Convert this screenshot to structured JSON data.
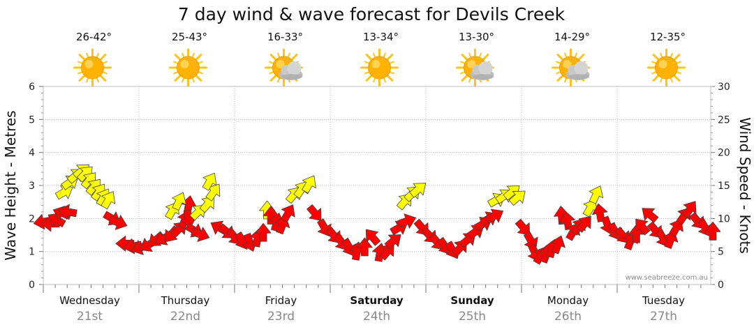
{
  "title": "7 day wind & wave forecast for Devils Creek",
  "watermark": "www.seabreeze.com.au",
  "chart_data": {
    "type": "scatter",
    "y_left": {
      "label": "Wave Height - Metres",
      "range": [
        0,
        6
      ],
      "ticks": [
        0,
        1,
        2,
        3,
        4,
        5,
        6
      ]
    },
    "y_right": {
      "label": "Wind Speed - Knots",
      "range": [
        0,
        30
      ],
      "ticks": [
        0,
        5,
        10,
        15,
        20,
        25,
        30
      ]
    },
    "grid": true,
    "days": [
      {
        "name": "Wednesday",
        "date": "21st",
        "temp": "26-42°",
        "weather": "sunny",
        "bold": false
      },
      {
        "name": "Thursday",
        "date": "22nd",
        "temp": "25-43°",
        "weather": "sunny",
        "bold": false
      },
      {
        "name": "Friday",
        "date": "23rd",
        "temp": "16-33°",
        "weather": "partly-cloudy",
        "bold": false
      },
      {
        "name": "Saturday",
        "date": "24th",
        "temp": "13-34°",
        "weather": "sunny",
        "bold": true
      },
      {
        "name": "Sunday",
        "date": "25th",
        "temp": "13-30°",
        "weather": "partly-cloudy",
        "bold": true
      },
      {
        "name": "Monday",
        "date": "26th",
        "temp": "14-29°",
        "weather": "partly-cloudy",
        "bold": false
      },
      {
        "name": "Tuesday",
        "date": "27th",
        "temp": "12-35°",
        "weather": "sunny",
        "bold": false
      }
    ],
    "colors": {
      "arrow_strong": "#ff0000",
      "arrow_light": "#ffff00",
      "arrow_stroke": "#444444",
      "sun": "#ffb300",
      "cloud": "#bdbdbd"
    },
    "series": [
      {
        "name": "wind",
        "unit": "knots",
        "note": "Arrows: position = wind speed at time (day index + fraction), rotation = direction in degrees (0 = pointing up/north), colour = strength class",
        "points": [
          {
            "t": 0.0,
            "v": 9.5,
            "dir": 260,
            "c": "strong"
          },
          {
            "t": 0.08,
            "v": 9.2,
            "dir": 270,
            "c": "strong"
          },
          {
            "t": 0.14,
            "v": 9.8,
            "dir": 300,
            "c": "strong"
          },
          {
            "t": 0.2,
            "v": 10.8,
            "dir": 290,
            "c": "strong"
          },
          {
            "t": 0.26,
            "v": 11.0,
            "dir": 280,
            "c": "strong"
          },
          {
            "t": 0.22,
            "v": 14.0,
            "dir": 60,
            "c": "light"
          },
          {
            "t": 0.28,
            "v": 15.5,
            "dir": 55,
            "c": "light"
          },
          {
            "t": 0.34,
            "v": 16.5,
            "dir": 50,
            "c": "light"
          },
          {
            "t": 0.4,
            "v": 17.2,
            "dir": 50,
            "c": "light"
          },
          {
            "t": 0.44,
            "v": 16.8,
            "dir": 45,
            "c": "light"
          },
          {
            "t": 0.48,
            "v": 15.8,
            "dir": 40,
            "c": "light"
          },
          {
            "t": 0.53,
            "v": 14.8,
            "dir": 40,
            "c": "light"
          },
          {
            "t": 0.58,
            "v": 14.0,
            "dir": 35,
            "c": "light"
          },
          {
            "t": 0.63,
            "v": 13.2,
            "dir": 30,
            "c": "light"
          },
          {
            "t": 0.68,
            "v": 12.8,
            "dir": 30,
            "c": "light"
          },
          {
            "t": 0.72,
            "v": 10.0,
            "dir": 120,
            "c": "strong"
          },
          {
            "t": 0.78,
            "v": 9.4,
            "dir": 110,
            "c": "strong"
          },
          {
            "t": 0.86,
            "v": 6.2,
            "dir": 270,
            "c": "strong"
          },
          {
            "t": 0.94,
            "v": 5.8,
            "dir": 260,
            "c": "strong"
          },
          {
            "t": 1.02,
            "v": 5.6,
            "dir": 250,
            "c": "strong"
          },
          {
            "t": 1.1,
            "v": 6.0,
            "dir": 240,
            "c": "strong"
          },
          {
            "t": 1.18,
            "v": 6.8,
            "dir": 230,
            "c": "strong"
          },
          {
            "t": 1.26,
            "v": 7.0,
            "dir": 240,
            "c": "strong"
          },
          {
            "t": 1.34,
            "v": 7.6,
            "dir": 220,
            "c": "strong"
          },
          {
            "t": 1.42,
            "v": 8.4,
            "dir": 45,
            "c": "strong"
          },
          {
            "t": 1.48,
            "v": 9.8,
            "dir": 20,
            "c": "strong"
          },
          {
            "t": 1.52,
            "v": 12.0,
            "dir": 10,
            "c": "strong"
          },
          {
            "t": 1.35,
            "v": 11.2,
            "dir": 30,
            "c": "light"
          },
          {
            "t": 1.42,
            "v": 12.6,
            "dir": 25,
            "c": "light"
          },
          {
            "t": 1.52,
            "v": 10.0,
            "dir": 170,
            "c": "strong"
          },
          {
            "t": 1.58,
            "v": 8.2,
            "dir": 120,
            "c": "strong"
          },
          {
            "t": 1.64,
            "v": 7.6,
            "dir": 110,
            "c": "strong"
          },
          {
            "t": 1.62,
            "v": 11.0,
            "dir": 45,
            "c": "light"
          },
          {
            "t": 1.72,
            "v": 12.2,
            "dir": 40,
            "c": "light"
          },
          {
            "t": 1.78,
            "v": 14.0,
            "dir": 35,
            "c": "light"
          },
          {
            "t": 1.74,
            "v": 15.6,
            "dir": 30,
            "c": "light"
          },
          {
            "t": 1.84,
            "v": 8.6,
            "dir": 300,
            "c": "strong"
          },
          {
            "t": 1.92,
            "v": 8.0,
            "dir": 130,
            "c": "strong"
          },
          {
            "t": 2.0,
            "v": 7.2,
            "dir": 140,
            "c": "strong"
          },
          {
            "t": 2.08,
            "v": 6.6,
            "dir": 150,
            "c": "strong"
          },
          {
            "t": 2.16,
            "v": 6.4,
            "dir": 160,
            "c": "strong"
          },
          {
            "t": 2.24,
            "v": 7.0,
            "dir": 10,
            "c": "strong"
          },
          {
            "t": 2.3,
            "v": 7.8,
            "dir": 0,
            "c": "strong"
          },
          {
            "t": 2.34,
            "v": 11.2,
            "dir": 0,
            "c": "light"
          },
          {
            "t": 2.38,
            "v": 10.4,
            "dir": 0,
            "c": "strong"
          },
          {
            "t": 2.44,
            "v": 9.4,
            "dir": 15,
            "c": "strong"
          },
          {
            "t": 2.5,
            "v": 9.0,
            "dir": 20,
            "c": "strong"
          },
          {
            "t": 2.56,
            "v": 10.8,
            "dir": 30,
            "c": "strong"
          },
          {
            "t": 2.62,
            "v": 13.6,
            "dir": 40,
            "c": "light"
          },
          {
            "t": 2.7,
            "v": 14.4,
            "dir": 35,
            "c": "light"
          },
          {
            "t": 2.78,
            "v": 15.2,
            "dir": 30,
            "c": "light"
          },
          {
            "t": 2.84,
            "v": 10.8,
            "dir": 140,
            "c": "strong"
          },
          {
            "t": 2.94,
            "v": 8.6,
            "dir": 150,
            "c": "strong"
          },
          {
            "t": 3.04,
            "v": 7.4,
            "dir": 140,
            "c": "strong"
          },
          {
            "t": 3.12,
            "v": 6.4,
            "dir": 145,
            "c": "strong"
          },
          {
            "t": 3.2,
            "v": 5.6,
            "dir": 150,
            "c": "strong"
          },
          {
            "t": 3.28,
            "v": 5.0,
            "dir": 10,
            "c": "strong"
          },
          {
            "t": 3.36,
            "v": 5.6,
            "dir": 0,
            "c": "strong"
          },
          {
            "t": 3.44,
            "v": 7.2,
            "dir": 320,
            "c": "strong"
          },
          {
            "t": 3.52,
            "v": 4.8,
            "dir": 10,
            "c": "strong"
          },
          {
            "t": 3.6,
            "v": 5.0,
            "dir": 40,
            "c": "strong"
          },
          {
            "t": 3.66,
            "v": 6.6,
            "dir": 50,
            "c": "strong"
          },
          {
            "t": 3.72,
            "v": 8.6,
            "dir": 60,
            "c": "strong"
          },
          {
            "t": 3.8,
            "v": 9.6,
            "dir": 70,
            "c": "strong"
          },
          {
            "t": 3.78,
            "v": 12.6,
            "dir": 40,
            "c": "light"
          },
          {
            "t": 3.86,
            "v": 13.8,
            "dir": 45,
            "c": "light"
          },
          {
            "t": 3.92,
            "v": 14.4,
            "dir": 50,
            "c": "light"
          },
          {
            "t": 3.96,
            "v": 8.6,
            "dir": 140,
            "c": "strong"
          },
          {
            "t": 4.04,
            "v": 7.4,
            "dir": 135,
            "c": "strong"
          },
          {
            "t": 4.12,
            "v": 6.4,
            "dir": 140,
            "c": "strong"
          },
          {
            "t": 4.2,
            "v": 5.8,
            "dir": 145,
            "c": "strong"
          },
          {
            "t": 4.28,
            "v": 5.2,
            "dir": 150,
            "c": "strong"
          },
          {
            "t": 4.36,
            "v": 5.6,
            "dir": 40,
            "c": "strong"
          },
          {
            "t": 4.44,
            "v": 6.8,
            "dir": 50,
            "c": "strong"
          },
          {
            "t": 4.52,
            "v": 8.0,
            "dir": 55,
            "c": "strong"
          },
          {
            "t": 4.6,
            "v": 9.2,
            "dir": 60,
            "c": "strong"
          },
          {
            "t": 4.66,
            "v": 10.0,
            "dir": 60,
            "c": "strong"
          },
          {
            "t": 4.72,
            "v": 10.4,
            "dir": 60,
            "c": "strong"
          },
          {
            "t": 4.74,
            "v": 12.8,
            "dir": 60,
            "c": "light"
          },
          {
            "t": 4.82,
            "v": 13.4,
            "dir": 55,
            "c": "light"
          },
          {
            "t": 4.9,
            "v": 14.0,
            "dir": 50,
            "c": "light"
          },
          {
            "t": 4.96,
            "v": 13.2,
            "dir": 50,
            "c": "light"
          },
          {
            "t": 5.02,
            "v": 8.6,
            "dir": 140,
            "c": "strong"
          },
          {
            "t": 5.1,
            "v": 6.6,
            "dir": 150,
            "c": "strong"
          },
          {
            "t": 5.14,
            "v": 4.8,
            "dir": 155,
            "c": "strong"
          },
          {
            "t": 5.2,
            "v": 4.4,
            "dir": 30,
            "c": "strong"
          },
          {
            "t": 5.26,
            "v": 4.6,
            "dir": 20,
            "c": "strong"
          },
          {
            "t": 5.32,
            "v": 5.4,
            "dir": 15,
            "c": "strong"
          },
          {
            "t": 5.38,
            "v": 6.0,
            "dir": 20,
            "c": "strong"
          },
          {
            "t": 5.42,
            "v": 10.4,
            "dir": 355,
            "c": "strong"
          },
          {
            "t": 5.48,
            "v": 9.6,
            "dir": 350,
            "c": "strong"
          },
          {
            "t": 5.54,
            "v": 8.0,
            "dir": 30,
            "c": "strong"
          },
          {
            "t": 5.6,
            "v": 8.8,
            "dir": 35,
            "c": "strong"
          },
          {
            "t": 5.66,
            "v": 9.2,
            "dir": 40,
            "c": "strong"
          },
          {
            "t": 5.72,
            "v": 11.6,
            "dir": 30,
            "c": "light"
          },
          {
            "t": 5.78,
            "v": 13.6,
            "dir": 25,
            "c": "light"
          },
          {
            "t": 5.82,
            "v": 10.8,
            "dir": 350,
            "c": "strong"
          },
          {
            "t": 5.9,
            "v": 9.0,
            "dir": 160,
            "c": "strong"
          },
          {
            "t": 5.98,
            "v": 8.0,
            "dir": 150,
            "c": "strong"
          },
          {
            "t": 6.06,
            "v": 7.4,
            "dir": 140,
            "c": "strong"
          },
          {
            "t": 6.14,
            "v": 6.6,
            "dir": 20,
            "c": "strong"
          },
          {
            "t": 6.2,
            "v": 7.6,
            "dir": 0,
            "c": "strong"
          },
          {
            "t": 6.26,
            "v": 8.8,
            "dir": 320,
            "c": "strong"
          },
          {
            "t": 6.34,
            "v": 10.6,
            "dir": 310,
            "c": "strong"
          },
          {
            "t": 6.4,
            "v": 8.2,
            "dir": 140,
            "c": "strong"
          },
          {
            "t": 6.48,
            "v": 7.0,
            "dir": 150,
            "c": "strong"
          },
          {
            "t": 6.56,
            "v": 6.8,
            "dir": 20,
            "c": "strong"
          },
          {
            "t": 6.62,
            "v": 8.6,
            "dir": 30,
            "c": "strong"
          },
          {
            "t": 6.7,
            "v": 10.4,
            "dir": 35,
            "c": "strong"
          },
          {
            "t": 6.76,
            "v": 11.4,
            "dir": 35,
            "c": "strong"
          },
          {
            "t": 6.84,
            "v": 9.6,
            "dir": 140,
            "c": "strong"
          },
          {
            "t": 6.92,
            "v": 8.6,
            "dir": 150,
            "c": "strong"
          },
          {
            "t": 7.0,
            "v": 8.0,
            "dir": 0,
            "c": "strong"
          }
        ]
      }
    ]
  }
}
